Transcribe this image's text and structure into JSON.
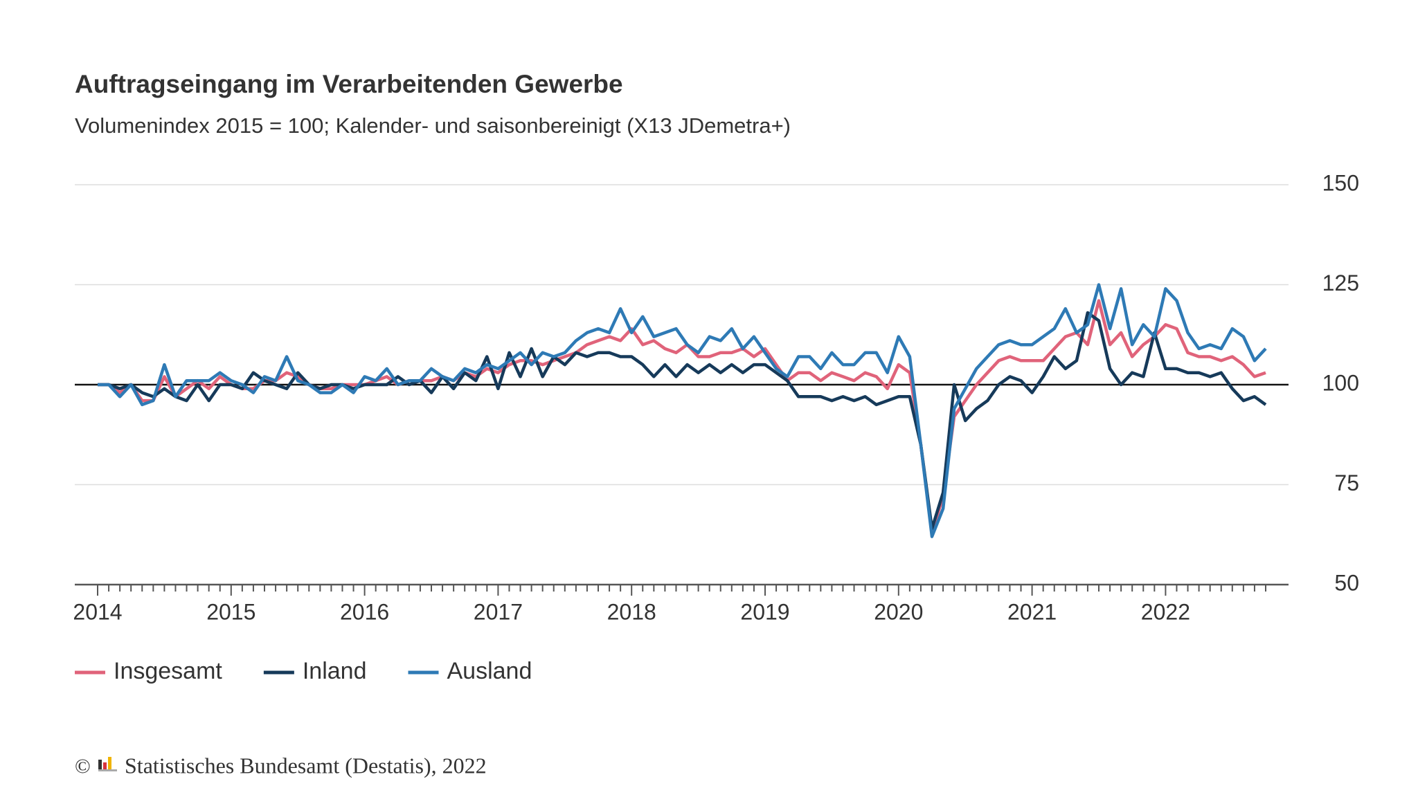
{
  "chart_data": {
    "type": "line",
    "title": "Auftragseingang im Verarbeitenden Gewerbe",
    "subtitle": "Volumenindex 2015 = 100; Kalender- und saisonbereinigt (X13 JDemetra+)",
    "categories": [
      "2014",
      null,
      null,
      null,
      null,
      null,
      null,
      null,
      null,
      null,
      null,
      null,
      "2015",
      null,
      null,
      null,
      null,
      null,
      null,
      null,
      null,
      null,
      null,
      null,
      "2016",
      null,
      null,
      null,
      null,
      null,
      null,
      null,
      null,
      null,
      null,
      null,
      "2017",
      null,
      null,
      null,
      null,
      null,
      null,
      null,
      null,
      null,
      null,
      null,
      "2018",
      null,
      null,
      null,
      null,
      null,
      null,
      null,
      null,
      null,
      null,
      null,
      "2019",
      null,
      null,
      null,
      null,
      null,
      null,
      null,
      null,
      null,
      null,
      null,
      "2020",
      null,
      null,
      null,
      null,
      null,
      null,
      null,
      null,
      null,
      null,
      null,
      "2021",
      null,
      null,
      null,
      null,
      null,
      null,
      null,
      null,
      null,
      null,
      null,
      "2022",
      null,
      null,
      null,
      null,
      null,
      null,
      null,
      null,
      null
    ],
    "series": [
      {
        "name": "Insgesamt",
        "color": "#e0637a",
        "values": [
          100,
          100,
          98,
          100,
          96,
          96,
          102,
          97,
          99,
          101,
          99,
          102,
          100,
          99,
          99,
          101,
          101,
          103,
          102,
          100,
          99,
          99,
          100,
          100,
          100,
          101,
          102,
          100,
          101,
          101,
          101,
          102,
          101,
          103,
          102,
          104,
          103,
          105,
          106,
          106,
          105,
          106,
          107,
          108,
          110,
          111,
          112,
          111,
          114,
          110,
          111,
          109,
          108,
          110,
          107,
          107,
          108,
          108,
          109,
          107,
          109,
          105,
          101,
          103,
          103,
          101,
          103,
          102,
          101,
          103,
          102,
          99,
          105,
          103,
          85,
          63,
          72,
          92,
          96,
          100,
          103,
          106,
          107,
          106,
          106,
          106,
          109,
          112,
          113,
          110,
          121,
          110,
          113,
          107,
          110,
          112,
          115,
          114,
          108,
          107,
          107,
          106,
          107,
          105,
          102,
          103
        ]
      },
      {
        "name": "Inland",
        "color": "#163a5a",
        "values": [
          100,
          100,
          99,
          100,
          98,
          97,
          99,
          97,
          96,
          100,
          96,
          100,
          100,
          99,
          103,
          101,
          100,
          99,
          103,
          100,
          99,
          100,
          100,
          99,
          100,
          100,
          100,
          102,
          100,
          101,
          98,
          102,
          99,
          103,
          101,
          107,
          99,
          108,
          102,
          109,
          102,
          107,
          105,
          108,
          107,
          108,
          108,
          107,
          107,
          105,
          102,
          105,
          102,
          105,
          103,
          105,
          103,
          105,
          103,
          105,
          105,
          103,
          101,
          97,
          97,
          97,
          96,
          97,
          96,
          97,
          95,
          96,
          97,
          97,
          85,
          64,
          73,
          100,
          91,
          94,
          96,
          100,
          102,
          101,
          98,
          102,
          107,
          104,
          106,
          118,
          116,
          104,
          100,
          103,
          102,
          113,
          104,
          104,
          103,
          103,
          102,
          103,
          99,
          96,
          97,
          95
        ]
      },
      {
        "name": "Ausland",
        "color": "#2e7ab5",
        "values": [
          100,
          100,
          97,
          100,
          95,
          96,
          105,
          97,
          101,
          101,
          101,
          103,
          101,
          100,
          98,
          102,
          101,
          107,
          101,
          100,
          98,
          98,
          100,
          98,
          102,
          101,
          104,
          100,
          101,
          101,
          104,
          102,
          101,
          104,
          103,
          105,
          104,
          106,
          108,
          105,
          108,
          107,
          108,
          111,
          113,
          114,
          113,
          119,
          113,
          117,
          112,
          113,
          114,
          110,
          108,
          112,
          111,
          114,
          109,
          112,
          108,
          104,
          102,
          107,
          107,
          104,
          108,
          105,
          105,
          108,
          108,
          103,
          112,
          107,
          85,
          62,
          69,
          94,
          99,
          104,
          107,
          110,
          111,
          110,
          110,
          112,
          114,
          119,
          113,
          115,
          125,
          114,
          124,
          110,
          115,
          112,
          124,
          121,
          113,
          109,
          110,
          109,
          114,
          112,
          106,
          109
        ]
      }
    ],
    "ylim": [
      50,
      150
    ],
    "yticks": [
      50,
      75,
      100,
      125,
      150
    ],
    "grid": true,
    "reference_line": 100,
    "legend": "bottom-left",
    "copyright": "©",
    "source": "Statistisches Bundesamt (Destatis), 2022"
  }
}
